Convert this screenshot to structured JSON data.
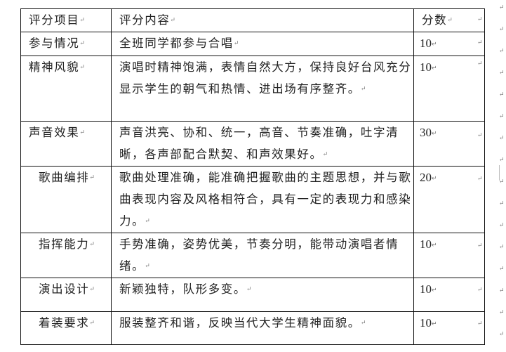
{
  "paragraph_mark": "↵",
  "table": {
    "headers": [
      "评分项目",
      "评分内容",
      "分数"
    ],
    "rows": [
      {
        "item": "参与情况",
        "content": "全班同学都参与合唱",
        "score": "10"
      },
      {
        "item": "精神风貌",
        "content": "演唱时精神饱满，表情自然大方，保持良好台风充分显示学生的朝气和热情、进出场有序整齐。",
        "score": "10"
      },
      {
        "item": "声音效果",
        "content": "声音洪亮、协和、统一，高音、节奏准确，吐字清晰，各声部配合默契、和声效果好。",
        "score": "30"
      },
      {
        "item": "歌曲编排",
        "content": "歌曲处理准确，能准确把握歌曲的主题思想，并与歌曲表现内容及风格相符合，具有一定的表现力和感染力。",
        "score": "20"
      },
      {
        "item": "指挥能力",
        "content": "手势准确，姿势优美，节奏分明，能带动演唱者情绪。",
        "score": "10"
      },
      {
        "item": "演出设计",
        "content": "新颖独特，队形多变。",
        "score": "10"
      },
      {
        "item": "着装要求",
        "content": "服装整齐和谐，反映当代大学生精神面貌。",
        "score": "10"
      }
    ]
  }
}
